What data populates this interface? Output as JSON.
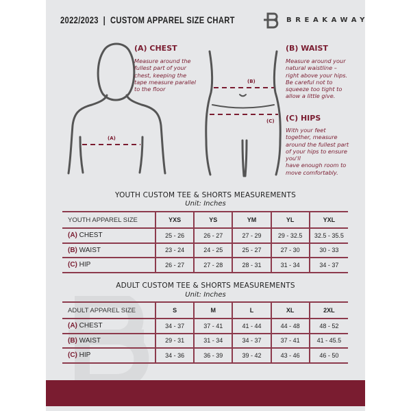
{
  "header": {
    "title": "2022/2023  |  CUSTOM APPAREL SIZE CHART",
    "brand": "BREAKAWAY"
  },
  "guide": {
    "chest": {
      "heading": "(A) CHEST",
      "marker": "(A)",
      "text": [
        "Measure around the",
        "fullest part of your",
        "chest, keeping the",
        "tape measure parallel",
        "to the floor"
      ]
    },
    "waist": {
      "heading": "(B) WAIST",
      "marker": "(B)",
      "text": [
        "Measure around your",
        "natural waistline –",
        "right above your hips.",
        "Be careful not to",
        "squeeze too tight to",
        "allow a little give."
      ]
    },
    "hips": {
      "heading": "(C) HIPS",
      "marker": "(C)",
      "text": [
        "With your feet",
        "together, measure",
        "around the fullest part",
        "of your hips to ensure",
        "you'll",
        "have enough room to",
        "move comfortably."
      ]
    }
  },
  "youth": {
    "title": "YOUTH CUSTOM TEE & SHORTS MEASUREMENTS",
    "unit": "Unit: Inches",
    "header_label": "YOUTH APPAREL SIZE",
    "sizes": [
      "YXS",
      "YS",
      "YM",
      "YL",
      "YXL"
    ],
    "rows": [
      {
        "code": "(A)",
        "name": "CHEST",
        "values": [
          "25 - 26",
          "26 - 27",
          "27 - 29",
          "29 - 32.5",
          "32.5 - 35.5"
        ]
      },
      {
        "code": "(B)",
        "name": "WAIST",
        "values": [
          "23 - 24",
          "24 - 25",
          "25 - 27",
          "27 - 30",
          "30 - 33"
        ]
      },
      {
        "code": "(C)",
        "name": "HIP",
        "values": [
          "26 - 27",
          "27 - 28",
          "28 - 31",
          "31 - 34",
          "34 - 37"
        ]
      }
    ]
  },
  "adult": {
    "title": "ADULT CUSTOM TEE & SHORTS MEASUREMENTS",
    "unit": "Unit: Inches",
    "header_label": "ADULT APPAREL SIZE",
    "sizes": [
      "S",
      "M",
      "L",
      "XL",
      "2XL"
    ],
    "rows": [
      {
        "code": "(A)",
        "name": "CHEST",
        "values": [
          "34 - 37",
          "37 - 41",
          "41 - 44",
          "44 - 48",
          "48 - 52"
        ]
      },
      {
        "code": "(B)",
        "name": "WAIST",
        "values": [
          "29 - 31",
          "31 - 34",
          "34 - 37",
          "37 - 41",
          "41 - 45.5"
        ]
      },
      {
        "code": "(C)",
        "name": "HIP",
        "values": [
          "34 - 36",
          "36 - 39",
          "39 - 42",
          "43 - 46",
          "46 - 50"
        ]
      }
    ]
  },
  "colors": {
    "accent": "#7a1c30",
    "background": "#e6e7e9"
  }
}
